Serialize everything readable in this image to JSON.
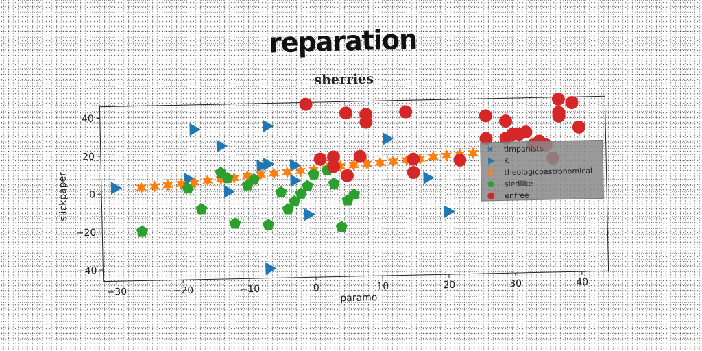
{
  "header": {
    "title": "reparation"
  },
  "chart_data": {
    "type": "scatter",
    "title": "sherries",
    "xlabel": "paramo",
    "ylabel": "slickpaper",
    "xlim": [
      -32,
      44
    ],
    "ylim": [
      -46,
      46
    ],
    "xticks": [
      -30,
      -20,
      -10,
      0,
      10,
      20,
      30,
      40
    ],
    "yticks": [
      -40,
      -20,
      0,
      20,
      40
    ],
    "tick_labels_x": [
      "−30",
      "−20",
      "−10",
      "0",
      "10",
      "20",
      "30",
      "40"
    ],
    "tick_labels_y": [
      "−40",
      "−20",
      "0",
      "20",
      "40"
    ],
    "legend_position": "right",
    "series": [
      {
        "name": "timpanists",
        "marker": "x",
        "color": "#1f77b4",
        "points": []
      },
      {
        "name": "K",
        "marker": "triangle-right",
        "color": "#1f77b4",
        "points": [
          [
            -30,
            3
          ],
          [
            -18,
            33
          ],
          [
            -14,
            24
          ],
          [
            -7,
            34
          ],
          [
            -19,
            7
          ],
          [
            -13,
            0
          ],
          [
            -8,
            13
          ],
          [
            -7,
            14
          ],
          [
            -3,
            13
          ],
          [
            -3,
            5
          ],
          [
            -1,
            -13
          ],
          [
            11,
            26
          ],
          [
            17,
            5
          ],
          [
            20,
            -13
          ],
          [
            -7,
            -41
          ]
        ]
      },
      {
        "name": "theologicoastronomical",
        "marker": "star",
        "color": "#ff7f0e",
        "points": [
          [
            -26,
            3
          ],
          [
            -24,
            3.5
          ],
          [
            -22,
            4
          ],
          [
            -20,
            4.5
          ],
          [
            -18,
            5
          ],
          [
            -16,
            6
          ],
          [
            -14,
            6.5
          ],
          [
            -12,
            7
          ],
          [
            -10,
            8
          ],
          [
            -8,
            8.5
          ],
          [
            -6,
            9
          ],
          [
            -4,
            9.5
          ],
          [
            -2,
            10
          ],
          [
            0,
            10.5
          ],
          [
            2,
            11
          ],
          [
            4,
            12
          ],
          [
            6,
            12.5
          ],
          [
            8,
            13
          ],
          [
            10,
            13.5
          ],
          [
            12,
            14
          ],
          [
            14,
            14.5
          ],
          [
            16,
            15
          ],
          [
            18,
            16
          ],
          [
            20,
            16.5
          ],
          [
            22,
            17
          ],
          [
            24,
            17.5
          ]
        ]
      },
      {
        "name": "sledlike",
        "marker": "pentagon",
        "color": "#2ca02c",
        "points": [
          [
            -26,
            -20
          ],
          [
            -19,
            2
          ],
          [
            -17,
            -9
          ],
          [
            -14,
            10
          ],
          [
            -13,
            7
          ],
          [
            -12,
            -17
          ],
          [
            -10,
            3
          ],
          [
            -9,
            6
          ],
          [
            -7,
            -18
          ],
          [
            -5,
            -1
          ],
          [
            -4,
            -10
          ],
          [
            -3,
            -6
          ],
          [
            -2,
            -2
          ],
          [
            -1,
            2
          ],
          [
            0,
            8
          ],
          [
            2,
            10
          ],
          [
            3,
            3
          ],
          [
            5,
            -6
          ],
          [
            6,
            -3
          ],
          [
            4,
            -20
          ]
        ]
      },
      {
        "name": "enfree",
        "marker": "circle",
        "color": "#d62728",
        "points": [
          [
            -1,
            45
          ],
          [
            1,
            16
          ],
          [
            3,
            17
          ],
          [
            3,
            12
          ],
          [
            5,
            7
          ],
          [
            5,
            40
          ],
          [
            7,
            17
          ],
          [
            8,
            39
          ],
          [
            8,
            35
          ],
          [
            14,
            40
          ],
          [
            15,
            8
          ],
          [
            15,
            15
          ],
          [
            22,
            14
          ],
          [
            26,
            25
          ],
          [
            26,
            37
          ],
          [
            29,
            34
          ],
          [
            29,
            25
          ],
          [
            30,
            27
          ],
          [
            31,
            27
          ],
          [
            32,
            28
          ],
          [
            33,
            21
          ],
          [
            34,
            23
          ],
          [
            35,
            21
          ],
          [
            36,
            14
          ],
          [
            37,
            45
          ],
          [
            37,
            38
          ],
          [
            37,
            36
          ],
          [
            39,
            43
          ],
          [
            40,
            30
          ]
        ]
      }
    ]
  }
}
